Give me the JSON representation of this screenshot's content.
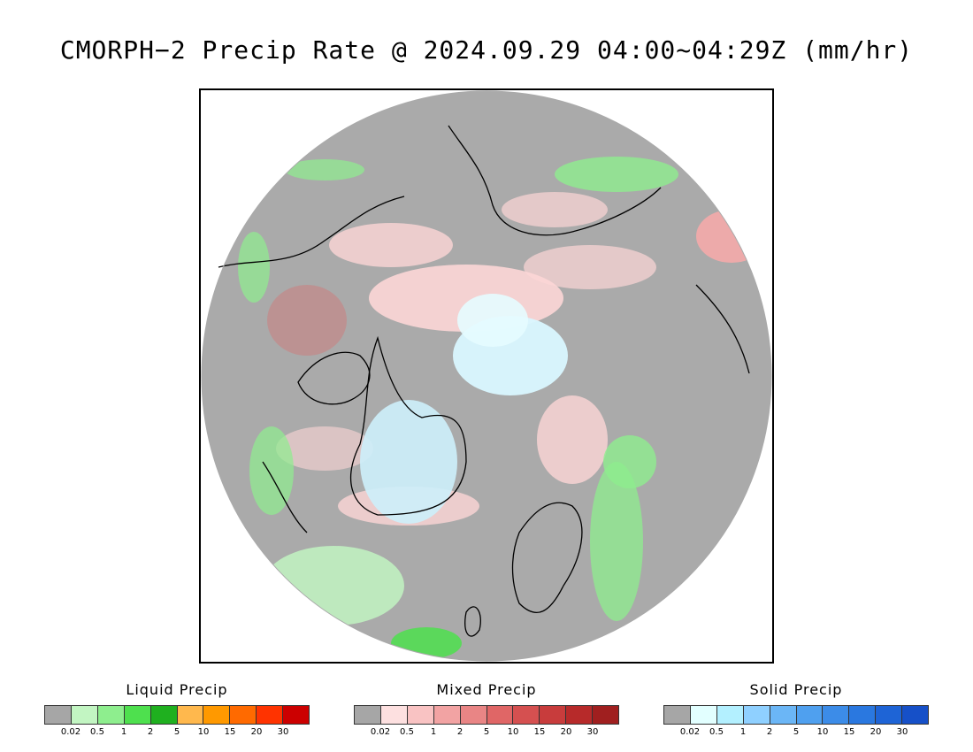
{
  "title": "CMORPH−2 Precip Rate @ 2024.09.29 04:00~04:29Z (mm/hr)",
  "map": {
    "background_color": "#aaaaaa",
    "coastline_color": "#000000"
  },
  "legends": [
    {
      "title": "Liquid Precip",
      "colors": [
        "#a6a6a6",
        "#c2f5c2",
        "#8eee8e",
        "#4ee04e",
        "#1fb01f",
        "#ffb84d",
        "#ff9900",
        "#ff6a00",
        "#ff3300",
        "#cc0000"
      ],
      "ticks": [
        "0.02",
        "0.5",
        "1",
        "2",
        "5",
        "10",
        "15",
        "20",
        "30"
      ]
    },
    {
      "title": "Mixed Precip",
      "colors": [
        "#a6a6a6",
        "#fde0e0",
        "#f9c3c3",
        "#f2a3a3",
        "#e98585",
        "#e06666",
        "#d55050",
        "#c83c3c",
        "#b72a2a",
        "#a01f1f"
      ],
      "ticks": [
        "0.02",
        "0.5",
        "1",
        "2",
        "5",
        "10",
        "15",
        "20",
        "30"
      ]
    },
    {
      "title": "Solid Precip",
      "colors": [
        "#a6a6a6",
        "#e2ffff",
        "#b3f0ff",
        "#8fd0ff",
        "#6bb6f6",
        "#4fa0ef",
        "#3c8ce8",
        "#2a78e0",
        "#1e64d6",
        "#1650c8"
      ],
      "ticks": [
        "0.02",
        "0.5",
        "1",
        "2",
        "5",
        "10",
        "15",
        "20",
        "30"
      ]
    }
  ]
}
